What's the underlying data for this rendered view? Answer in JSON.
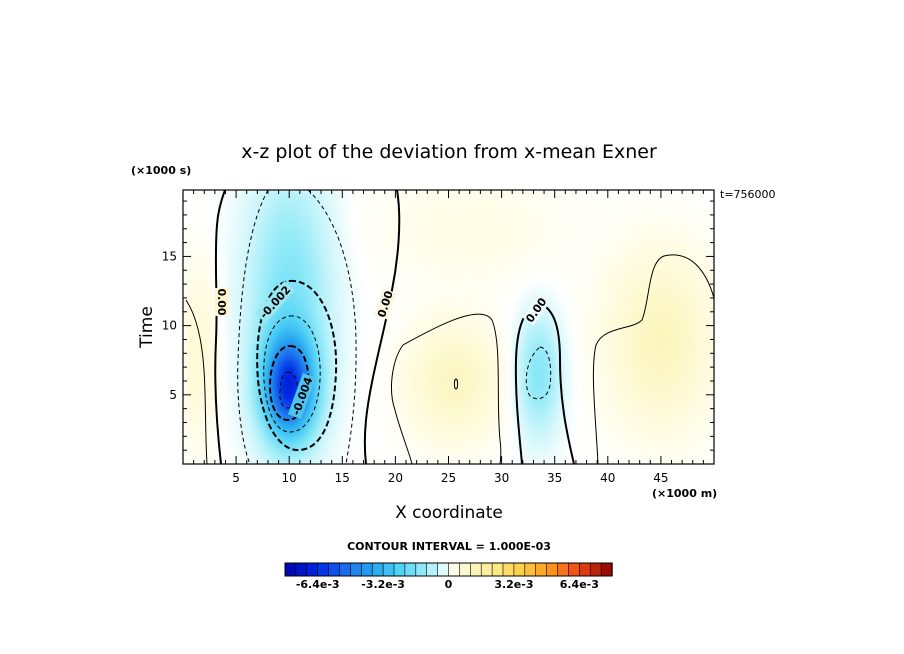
{
  "chart_data": {
    "type": "heatmap",
    "title": "x-z plot of the deviation from x-mean Exner",
    "xlabel": "X coordinate",
    "ylabel": "Time",
    "x_unit": "(×1000 m)",
    "y_unit": "(×1000 s)",
    "time_stamp": "t=756000",
    "xlim": [
      0,
      50
    ],
    "ylim": [
      0,
      19.8
    ],
    "x_ticks": [
      5,
      10,
      15,
      20,
      25,
      30,
      35,
      40,
      45
    ],
    "y_ticks": [
      5,
      10,
      15
    ],
    "contour_interval_text": "CONTOUR INTERVAL = 1.000E-03",
    "contour_labels": [
      {
        "text": "0.00",
        "x": 3.2,
        "y": 11.2
      },
      {
        "text": "-0.002",
        "x": 8.3,
        "y": 11.6
      },
      {
        "text": "-0.004",
        "x": 11.0,
        "y": 4.8
      },
      {
        "text": "0.00",
        "x": 18.8,
        "y": 11.5
      },
      {
        "text": "0.00",
        "x": 33.3,
        "y": 11.6
      }
    ],
    "colorbar": {
      "min": -0.008,
      "max": 0.008,
      "levels": 30,
      "tick_labels": [
        "-6.4e-3",
        "-3.2e-3",
        "0",
        "3.2e-3",
        "6.4e-3"
      ],
      "tick_values": [
        -0.0064,
        -0.0032,
        0,
        0.0032,
        0.0064
      ]
    },
    "field_features": [
      {
        "kind": "minimum",
        "x": 10.0,
        "y": 5.6,
        "value": -0.0058
      },
      {
        "kind": "minimum",
        "x": 33.5,
        "y": 6.5,
        "value": -0.0013
      },
      {
        "kind": "maximum",
        "x": 25.5,
        "y": 6.0,
        "value": 0.0011
      },
      {
        "kind": "maximum",
        "x": 45.0,
        "y": 10.0,
        "value": 0.0012
      }
    ]
  }
}
